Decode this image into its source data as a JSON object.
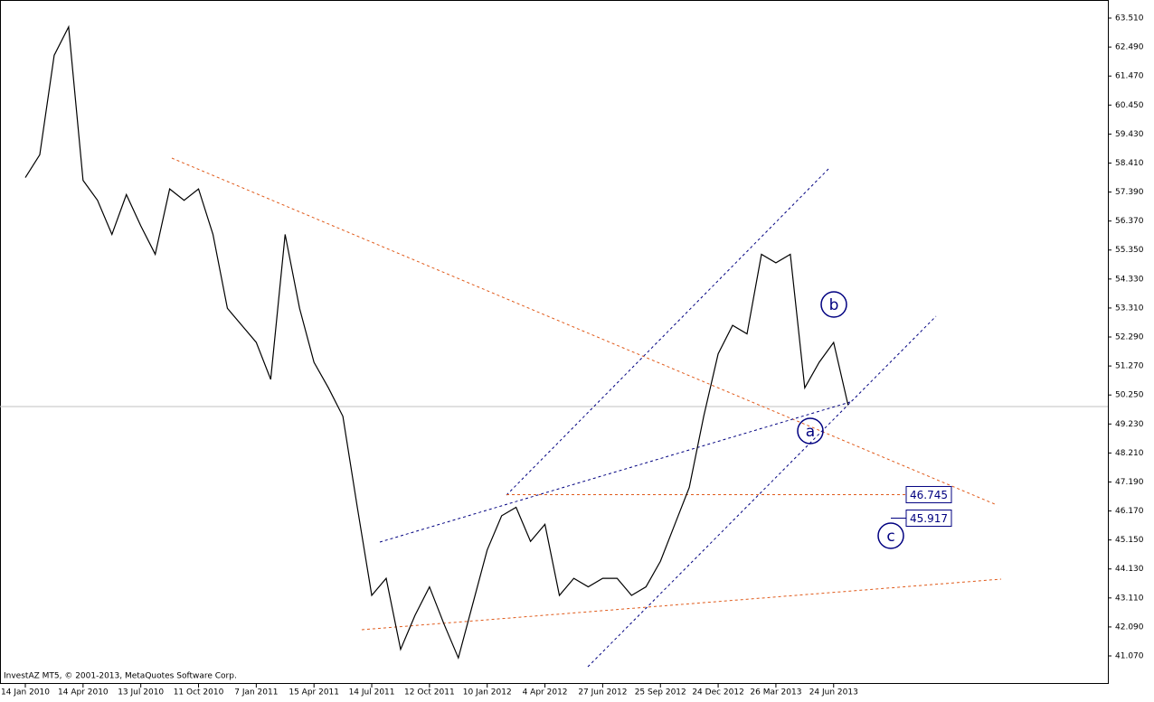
{
  "chart_data": {
    "type": "line",
    "copyright": "InvestAZ MT5, © 2001-2013, MetaQuotes Software Corp.",
    "categories": [
      "14 Jan 2010",
      null,
      null,
      null,
      "14 Apr 2010",
      null,
      null,
      null,
      "13 Jul 2010",
      null,
      null,
      null,
      "11 Oct 2010",
      null,
      null,
      null,
      "7 Jan 2011",
      null,
      null,
      null,
      "15 Apr 2011",
      null,
      null,
      null,
      "14 Jul 2011",
      null,
      null,
      null,
      "12 Oct 2011",
      null,
      null,
      null,
      "10 Jan 2012",
      null,
      null,
      null,
      "4 Apr 2012",
      null,
      null,
      null,
      "27 Jun 2012",
      null,
      null,
      null,
      "25 Sep 2012",
      null,
      null,
      null,
      "24 Dec 2012",
      null,
      null,
      null,
      "26 Mar 2013",
      null,
      null,
      null,
      "24 Jun 2013",
      null
    ],
    "series": [
      {
        "color": "#000000",
        "values": [
          57.9,
          58.7,
          62.2,
          63.2,
          57.8,
          57.1,
          55.9,
          57.3,
          56.2,
          55.2,
          57.5,
          57.1,
          57.5,
          55.9,
          53.3,
          52.7,
          52.1,
          50.8,
          55.9,
          53.3,
          51.4,
          50.5,
          49.5,
          46.3,
          43.2,
          43.8,
          41.3,
          42.5,
          43.5,
          42.2,
          41.0,
          42.9,
          44.8,
          46.0,
          46.3,
          45.1,
          45.7,
          43.2,
          43.8,
          43.5,
          43.8,
          43.8,
          43.2,
          43.5,
          44.4,
          45.7,
          47.0,
          49.5,
          51.7,
          52.7,
          52.4,
          55.2,
          54.9,
          55.2,
          50.5,
          51.4,
          52.1,
          49.9
        ]
      }
    ],
    "ylim": [
      40.085,
      64.146
    ],
    "yticks": [
      {
        "value": 41.07,
        "label": "41.070"
      },
      {
        "value": 42.09,
        "label": "42.090"
      },
      {
        "value": 43.11,
        "label": "43.110"
      },
      {
        "value": 44.13,
        "label": "44.130"
      },
      {
        "value": 45.15,
        "label": "45.150"
      },
      {
        "value": 46.17,
        "label": "46.170"
      },
      {
        "value": 47.19,
        "label": "47.190"
      },
      {
        "value": 48.21,
        "label": "48.210"
      },
      {
        "value": 49.23,
        "label": "49.230"
      },
      {
        "value": 50.25,
        "label": "50.250"
      },
      {
        "value": 51.27,
        "label": "51.270"
      },
      {
        "value": 52.29,
        "label": "52.290"
      },
      {
        "value": 53.31,
        "label": "53.310"
      },
      {
        "value": 54.33,
        "label": "54.330"
      },
      {
        "value": 55.35,
        "label": "55.350"
      },
      {
        "value": 56.37,
        "label": "56.370"
      },
      {
        "value": 57.39,
        "label": "57.390"
      },
      {
        "value": 58.41,
        "label": "58.410"
      },
      {
        "value": 59.43,
        "label": "59.430"
      },
      {
        "value": 60.45,
        "label": "60.450"
      },
      {
        "value": 61.47,
        "label": "61.470"
      },
      {
        "value": 62.49,
        "label": "62.490"
      },
      {
        "value": 63.51,
        "label": "63.510"
      }
    ],
    "levels": [
      46.745,
      45.917
    ],
    "annotations": [
      "a",
      "b",
      "c"
    ],
    "grid": false
  }
}
